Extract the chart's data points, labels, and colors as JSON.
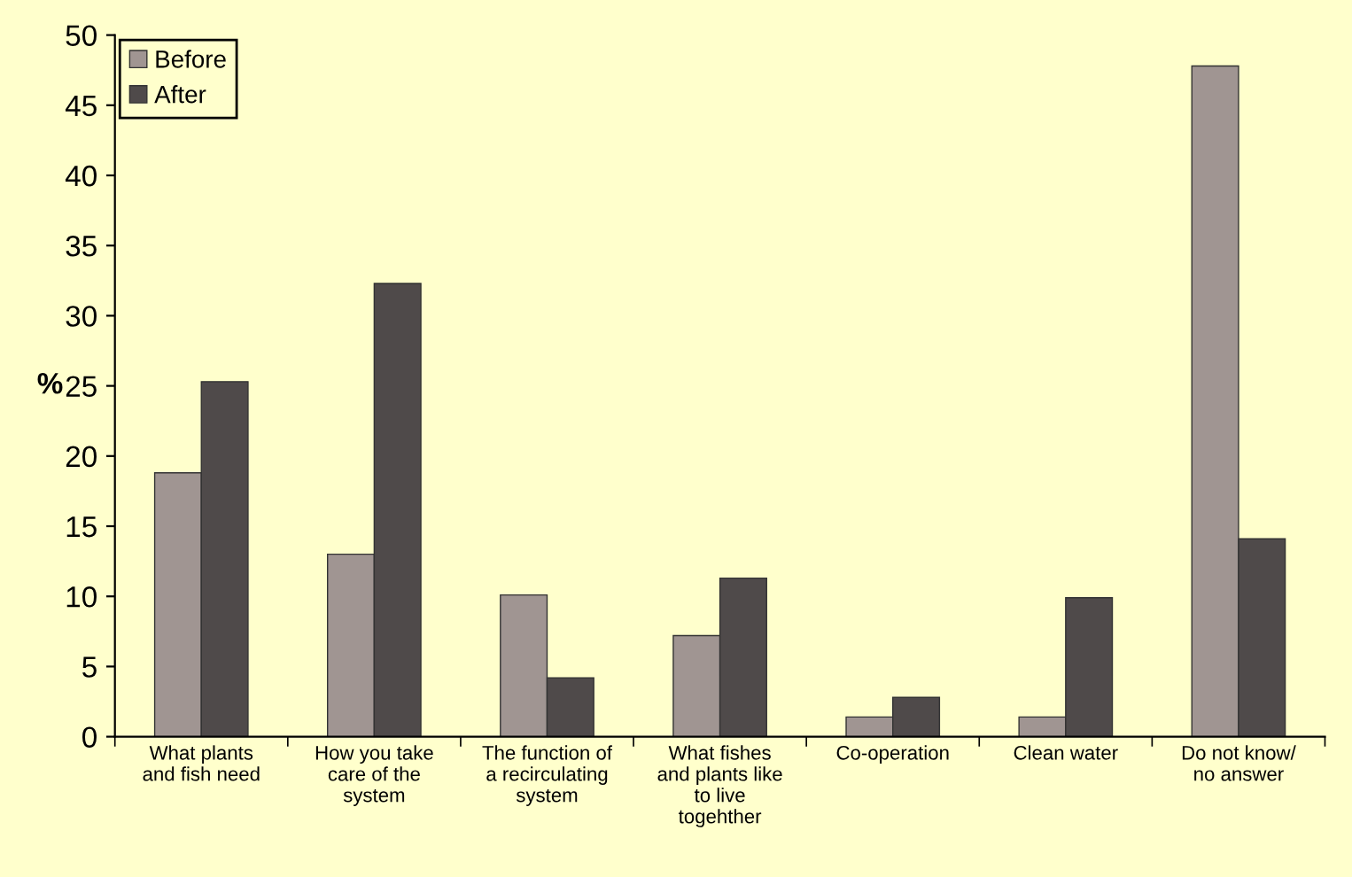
{
  "chart_data": {
    "type": "bar",
    "ylabel": "%",
    "categories": [
      "What plants\nand fish need",
      "How you take\ncare of the\nsystem",
      "The function of\na recirculating\nsystem",
      "What fishes\nand plants like\nto live\ntogehther",
      "Co-operation",
      "Clean water",
      "Do not know/\nno answer"
    ],
    "series": [
      {
        "name": "Before",
        "color": "#a09592",
        "values": [
          18.8,
          13.0,
          10.1,
          7.2,
          1.4,
          1.4,
          47.8
        ]
      },
      {
        "name": "After",
        "color": "#4f4a4a",
        "values": [
          25.3,
          32.3,
          4.2,
          11.3,
          2.8,
          9.9,
          14.1
        ]
      }
    ],
    "ylim": [
      0,
      50
    ],
    "yticks": [
      0,
      5,
      10,
      15,
      20,
      25,
      30,
      35,
      40,
      45,
      50
    ],
    "grid": false,
    "legend": "top left"
  }
}
